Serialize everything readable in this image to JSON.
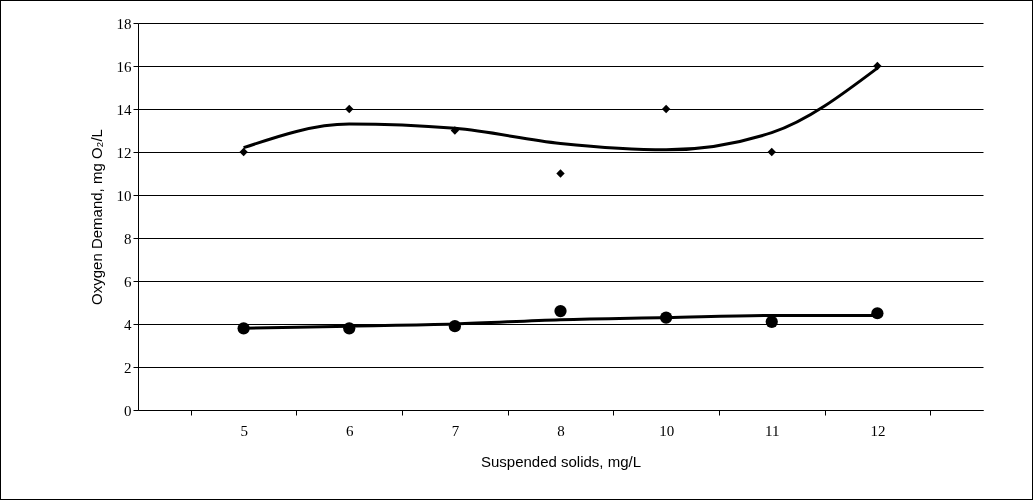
{
  "chart_data": {
    "type": "scatter",
    "xlabel": "Suspended solids, mg/L",
    "ylabel": "Oxygen Demand, mg  O₂/L",
    "categories": [
      "5",
      "6",
      "7",
      "8",
      "10",
      "11",
      "12"
    ],
    "series": [
      {
        "marker": "diamond",
        "color": "#000000",
        "values": [
          12,
          14,
          13,
          11,
          14,
          12,
          16
        ]
      },
      {
        "marker": "circle",
        "color": "#000000",
        "values": [
          3.8,
          3.8,
          3.9,
          4.6,
          4.3,
          4.1,
          4.5
        ]
      },
      {
        "type": "line",
        "marker": "none",
        "color": "#000000",
        "values": [
          12.2,
          13.3,
          13.1,
          12.4,
          12.1,
          12.9,
          15.9
        ]
      },
      {
        "type": "line",
        "marker": "none",
        "color": "#000000",
        "values": [
          3.8,
          3.9,
          4.0,
          4.2,
          4.3,
          4.4,
          4.4
        ]
      }
    ],
    "ylim": [
      0,
      18
    ],
    "yticks": [
      0,
      2,
      4,
      6,
      8,
      10,
      12,
      14,
      16,
      18
    ],
    "grid": "y"
  }
}
